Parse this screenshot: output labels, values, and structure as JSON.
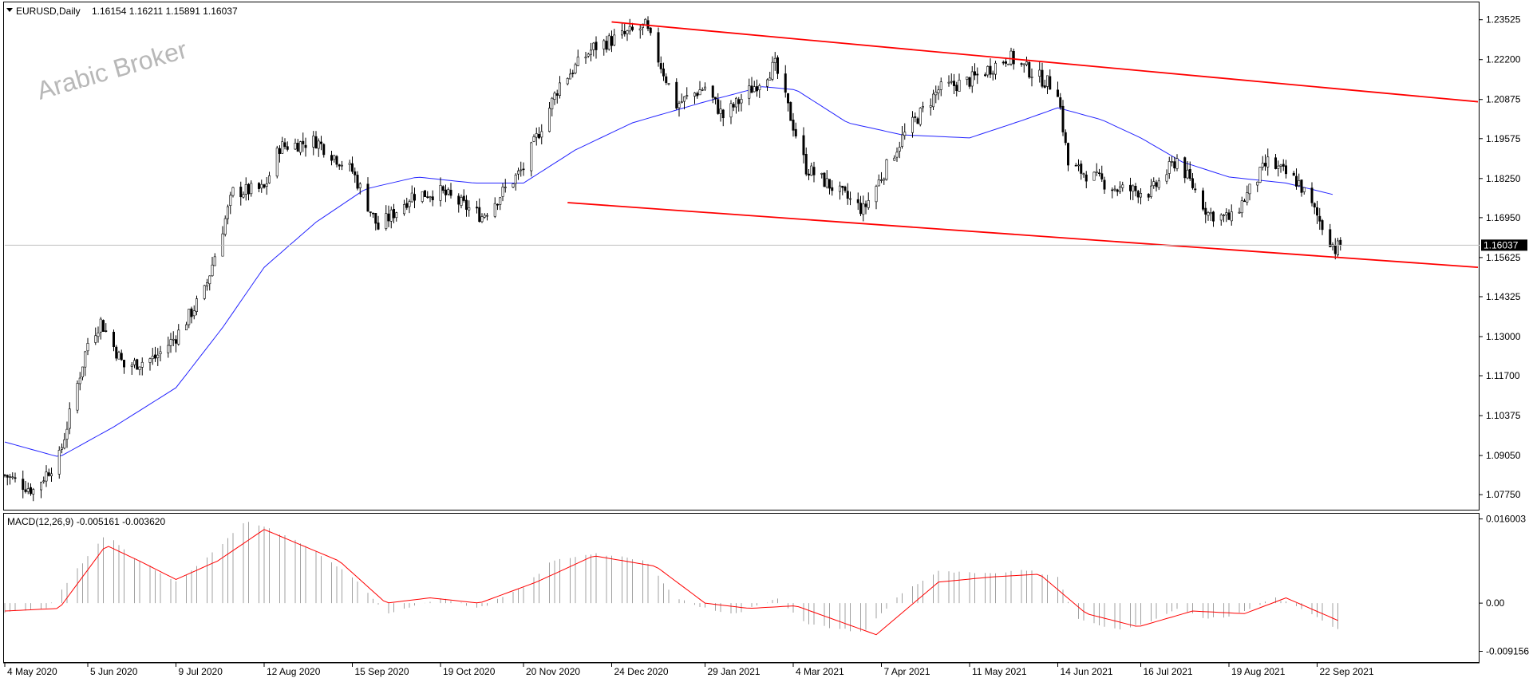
{
  "header": {
    "symbol_info": "EURUSD,Daily",
    "ohlc": "1.16154 1.16211 1.15891 1.16037"
  },
  "watermark": "Arabic Broker",
  "price_label": "1.16037",
  "macd": {
    "label": "MACD(12,26,9) -0.005161 -0.003620"
  },
  "colors": {
    "candle": "#000000",
    "ma": "#2323ff",
    "channel": "#ff0000",
    "signal": "#ff0000",
    "histogram": "#a0a0a0",
    "price_box": "#000000"
  },
  "chart_data": [
    {
      "type": "candlestick",
      "title": "EURUSD,Daily",
      "y_ticks": [
        "1.23525",
        "1.22200",
        "1.20875",
        "1.19575",
        "1.18250",
        "1.16950",
        "1.15625",
        "1.14325",
        "1.13000",
        "1.11700",
        "1.10375",
        "1.09050",
        "1.07750"
      ],
      "ylim": [
        1.0725,
        1.241
      ],
      "x_ticks": [
        "4 May 2020",
        "5 Jun 2020",
        "9 Jul 2020",
        "12 Aug 2020",
        "15 Sep 2020",
        "19 Oct 2020",
        "20 Nov 2020",
        "24 Dec 2020",
        "29 Jan 2021",
        "4 Mar 2021",
        "7 Apr 2021",
        "11 May 2021",
        "14 Jun 2021",
        "16 Jul 2021",
        "19 Aug 2021",
        "22 Sep 2021"
      ],
      "last_price": 1.16037,
      "price_anchors": [
        [
          "2020-05-04",
          1.084
        ],
        [
          "2020-05-15",
          1.079
        ],
        [
          "2020-05-25",
          1.09
        ],
        [
          "2020-06-05",
          1.128
        ],
        [
          "2020-06-10",
          1.135
        ],
        [
          "2020-06-19",
          1.12
        ],
        [
          "2020-07-01",
          1.123
        ],
        [
          "2020-07-09",
          1.13
        ],
        [
          "2020-07-20",
          1.145
        ],
        [
          "2020-07-31",
          1.178
        ],
        [
          "2020-08-12",
          1.179
        ],
        [
          "2020-08-18",
          1.193
        ],
        [
          "2020-09-01",
          1.195
        ],
        [
          "2020-09-15",
          1.185
        ],
        [
          "2020-09-25",
          1.166
        ],
        [
          "2020-10-08",
          1.177
        ],
        [
          "2020-10-19",
          1.178
        ],
        [
          "2020-11-04",
          1.17
        ],
        [
          "2020-11-20",
          1.186
        ],
        [
          "2020-12-04",
          1.214
        ],
        [
          "2020-12-17",
          1.226
        ],
        [
          "2021-01-06",
          1.233
        ],
        [
          "2021-01-18",
          1.207
        ],
        [
          "2021-01-29",
          1.213
        ],
        [
          "2021-02-05",
          1.203
        ],
        [
          "2021-02-25",
          1.22
        ],
        [
          "2021-03-09",
          1.186
        ],
        [
          "2021-03-31",
          1.172
        ],
        [
          "2021-04-15",
          1.196
        ],
        [
          "2021-04-29",
          1.212
        ],
        [
          "2021-05-11",
          1.215
        ],
        [
          "2021-05-26",
          1.223
        ],
        [
          "2021-06-14",
          1.212
        ],
        [
          "2021-06-18",
          1.187
        ],
        [
          "2021-07-07",
          1.179
        ],
        [
          "2021-07-20",
          1.178
        ],
        [
          "2021-07-30",
          1.189
        ],
        [
          "2021-08-11",
          1.171
        ],
        [
          "2021-08-20",
          1.169
        ],
        [
          "2021-09-03",
          1.188
        ],
        [
          "2021-09-15",
          1.181
        ],
        [
          "2021-09-29",
          1.159
        ],
        [
          "2021-10-01",
          1.1604
        ]
      ],
      "moving_average": [
        [
          "2020-05-04",
          1.095
        ],
        [
          "2020-05-25",
          1.09
        ],
        [
          "2020-06-15",
          1.1
        ],
        [
          "2020-07-09",
          1.113
        ],
        [
          "2020-07-27",
          1.133
        ],
        [
          "2020-08-12",
          1.153
        ],
        [
          "2020-09-01",
          1.168
        ],
        [
          "2020-09-20",
          1.179
        ],
        [
          "2020-10-10",
          1.183
        ],
        [
          "2020-11-01",
          1.181
        ],
        [
          "2020-11-20",
          1.181
        ],
        [
          "2020-12-10",
          1.192
        ],
        [
          "2021-01-01",
          1.201
        ],
        [
          "2021-01-29",
          1.208
        ],
        [
          "2021-02-20",
          1.213
        ],
        [
          "2021-03-05",
          1.212
        ],
        [
          "2021-03-25",
          1.201
        ],
        [
          "2021-04-15",
          1.197
        ],
        [
          "2021-05-11",
          1.196
        ],
        [
          "2021-06-01",
          1.202
        ],
        [
          "2021-06-14",
          1.206
        ],
        [
          "2021-07-01",
          1.202
        ],
        [
          "2021-07-16",
          1.196
        ],
        [
          "2021-08-01",
          1.188
        ],
        [
          "2021-08-19",
          1.183
        ],
        [
          "2021-09-10",
          1.181
        ],
        [
          "2021-09-29",
          1.177
        ]
      ],
      "channel_upper": [
        [
          "2020-12-24",
          1.2345
        ],
        [
          "2021-11-23",
          1.208
        ]
      ],
      "channel_lower": [
        [
          "2020-12-07",
          1.1745
        ],
        [
          "2021-11-23",
          1.153
        ]
      ]
    },
    {
      "type": "bar",
      "title": "MACD(12,26,9) -0.005161 -0.003620",
      "y_ticks": [
        "0.016003",
        "0.00",
        "-0.009156"
      ],
      "ylim": [
        -0.0112,
        0.017
      ],
      "macd_anchors": [
        [
          "2020-05-04",
          -0.0018
        ],
        [
          "2020-05-20",
          -0.001
        ],
        [
          "2020-06-05",
          0.009
        ],
        [
          "2020-06-12",
          0.013
        ],
        [
          "2020-06-22",
          0.009
        ],
        [
          "2020-07-09",
          0.004
        ],
        [
          "2020-07-22",
          0.009
        ],
        [
          "2020-08-05",
          0.0155
        ],
        [
          "2020-08-12",
          0.0145
        ],
        [
          "2020-08-28",
          0.011
        ],
        [
          "2020-09-15",
          0.005
        ],
        [
          "2020-09-28",
          -0.002
        ],
        [
          "2020-10-19",
          0.001
        ],
        [
          "2020-11-03",
          -0.001
        ],
        [
          "2020-11-20",
          0.003
        ],
        [
          "2020-12-01",
          0.008
        ],
        [
          "2020-12-17",
          0.0095
        ],
        [
          "2021-01-06",
          0.008
        ],
        [
          "2021-01-18",
          0.001
        ],
        [
          "2021-01-29",
          -0.001
        ],
        [
          "2021-02-10",
          -0.002
        ],
        [
          "2021-02-26",
          0.001
        ],
        [
          "2021-03-09",
          -0.004
        ],
        [
          "2021-03-31",
          -0.0055
        ],
        [
          "2021-04-15",
          0.002
        ],
        [
          "2021-04-29",
          0.006
        ],
        [
          "2021-05-20",
          0.0055
        ],
        [
          "2021-05-31",
          0.0065
        ],
        [
          "2021-06-14",
          0.005
        ],
        [
          "2021-06-21",
          -0.003
        ],
        [
          "2021-07-07",
          -0.005
        ],
        [
          "2021-07-20",
          -0.0035
        ],
        [
          "2021-07-30",
          -0.001
        ],
        [
          "2021-08-11",
          -0.003
        ],
        [
          "2021-08-20",
          -0.0025
        ],
        [
          "2021-09-06",
          0.001
        ],
        [
          "2021-09-20",
          -0.002
        ],
        [
          "2021-10-01",
          -0.0052
        ]
      ],
      "signal_anchors": [
        [
          "2020-05-04",
          -0.0015
        ],
        [
          "2020-05-25",
          -0.001
        ],
        [
          "2020-06-12",
          0.011
        ],
        [
          "2020-06-25",
          0.008
        ],
        [
          "2020-07-09",
          0.0045
        ],
        [
          "2020-07-25",
          0.008
        ],
        [
          "2020-08-12",
          0.014
        ],
        [
          "2020-09-10",
          0.008
        ],
        [
          "2020-09-28",
          0.0
        ],
        [
          "2020-10-15",
          0.001
        ],
        [
          "2020-11-03",
          0.0
        ],
        [
          "2020-11-25",
          0.004
        ],
        [
          "2020-12-17",
          0.009
        ],
        [
          "2021-01-10",
          0.007
        ],
        [
          "2021-01-29",
          0.0
        ],
        [
          "2021-02-15",
          -0.001
        ],
        [
          "2021-03-05",
          -0.0005
        ],
        [
          "2021-04-05",
          -0.006
        ],
        [
          "2021-04-29",
          0.004
        ],
        [
          "2021-05-20",
          0.005
        ],
        [
          "2021-06-07",
          0.0055
        ],
        [
          "2021-06-25",
          -0.002
        ],
        [
          "2021-07-15",
          -0.0045
        ],
        [
          "2021-08-05",
          -0.0015
        ],
        [
          "2021-08-25",
          -0.002
        ],
        [
          "2021-09-10",
          0.001
        ],
        [
          "2021-10-01",
          -0.0035
        ]
      ]
    }
  ]
}
